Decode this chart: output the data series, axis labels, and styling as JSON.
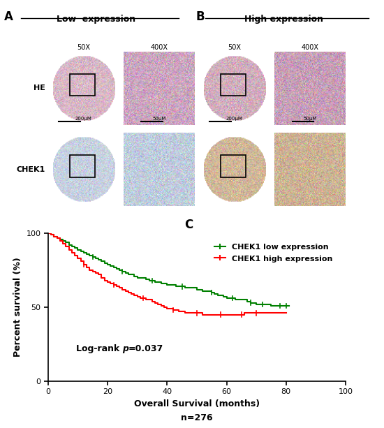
{
  "panel_A_label": "A",
  "panel_B_label": "B",
  "panel_C_label": "C",
  "low_expression_label": "Low  expression",
  "high_expression_label": "High expression",
  "magnifications": [
    "50X",
    "400X",
    "50X",
    "400X"
  ],
  "row_labels": [
    "HE",
    "CHEK1"
  ],
  "scale_bars_row1": [
    "200μM",
    "50μM",
    "200μM",
    "50μM"
  ],
  "xlabel": "Overall Survival (months)",
  "ylabel": "Percent survival (%)",
  "sample_size": "n=276",
  "logrank_text": "Log-rank ",
  "logrank_p": "p",
  "logrank_val": "=0.037",
  "legend_low": "CHEK1 low expression",
  "legend_high": "CHEK1 high expression",
  "color_low": "#008000",
  "color_high": "#ff0000",
  "xlim": [
    0,
    100
  ],
  "ylim": [
    0,
    100
  ],
  "xticks": [
    0,
    20,
    40,
    60,
    80,
    100
  ],
  "yticks": [
    0,
    50,
    100
  ],
  "bg_color": "#ffffff",
  "low_t": [
    0,
    1,
    2,
    3,
    4,
    5,
    6,
    7,
    8,
    9,
    10,
    11,
    12,
    13,
    14,
    15,
    16,
    17,
    18,
    19,
    20,
    21,
    22,
    23,
    24,
    25,
    26,
    27,
    28,
    29,
    30,
    31,
    32,
    33,
    34,
    35,
    36,
    37,
    38,
    39,
    40,
    41,
    42,
    43,
    44,
    45,
    46,
    47,
    48,
    49,
    50,
    51,
    52,
    53,
    54,
    55,
    56,
    57,
    58,
    59,
    60,
    61,
    62,
    63,
    64,
    65,
    66,
    67,
    68,
    69,
    70,
    71,
    72,
    73,
    74,
    75,
    76,
    77,
    78,
    79,
    80,
    81
  ],
  "low_s": [
    100,
    99,
    98,
    97,
    96,
    95,
    94,
    92,
    91,
    90,
    89,
    88,
    87,
    86,
    85,
    84,
    83,
    82,
    81,
    80,
    79,
    78,
    77,
    76,
    75,
    74,
    73,
    72,
    72,
    71,
    70,
    70,
    70,
    69,
    68,
    68,
    67,
    67,
    66,
    66,
    65,
    65,
    65,
    64,
    64,
    64,
    63,
    63,
    63,
    63,
    62,
    62,
    61,
    61,
    61,
    60,
    59,
    58,
    58,
    57,
    56,
    56,
    56,
    55,
    55,
    55,
    55,
    54,
    53,
    53,
    52,
    52,
    52,
    52,
    52,
    51,
    51,
    51,
    51,
    51,
    51,
    51
  ],
  "high_t": [
    0,
    1,
    2,
    3,
    4,
    5,
    6,
    7,
    8,
    9,
    10,
    11,
    12,
    13,
    14,
    15,
    16,
    17,
    18,
    19,
    20,
    21,
    22,
    23,
    24,
    25,
    26,
    27,
    28,
    29,
    30,
    31,
    32,
    33,
    34,
    35,
    36,
    37,
    38,
    39,
    40,
    41,
    42,
    43,
    44,
    45,
    46,
    47,
    48,
    49,
    50,
    51,
    52,
    53,
    54,
    55,
    56,
    57,
    58,
    59,
    60,
    61,
    62,
    63,
    64,
    65,
    66,
    67,
    68,
    69,
    70,
    71,
    72,
    73,
    74,
    75,
    76,
    77,
    78,
    79,
    80
  ],
  "high_s": [
    100,
    99,
    98,
    97,
    95,
    93,
    91,
    89,
    87,
    85,
    83,
    81,
    79,
    77,
    75,
    74,
    73,
    72,
    70,
    68,
    67,
    66,
    65,
    64,
    63,
    62,
    61,
    60,
    59,
    58,
    57,
    56,
    56,
    55,
    55,
    54,
    53,
    52,
    51,
    50,
    49,
    49,
    48,
    48,
    47,
    47,
    46,
    46,
    46,
    46,
    46,
    46,
    45,
    45,
    45,
    45,
    45,
    45,
    45,
    45,
    45,
    45,
    45,
    45,
    45,
    45,
    46,
    46,
    46,
    46,
    46,
    46,
    46,
    46,
    46,
    46,
    46,
    46,
    46,
    46,
    46
  ]
}
